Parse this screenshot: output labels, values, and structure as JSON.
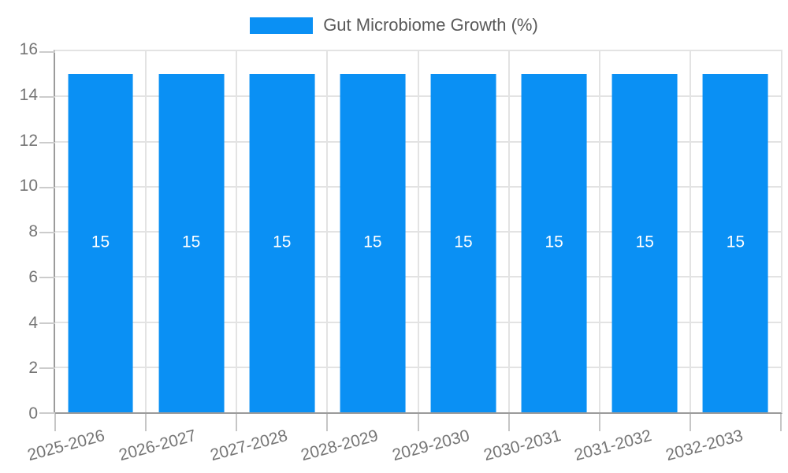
{
  "chart_data": {
    "type": "bar",
    "legend_label": "Gut Microbiome Growth (%)",
    "legend_position": "top",
    "categories": [
      "2025-2026",
      "2026-2027",
      "2027-2028",
      "2028-2029",
      "2029-2030",
      "2030-2031",
      "2031-2032",
      "2032-2033"
    ],
    "values": [
      15,
      15,
      15,
      15,
      15,
      15,
      15,
      15
    ],
    "bar_value_labels": [
      "15",
      "15",
      "15",
      "15",
      "15",
      "15",
      "15",
      "15"
    ],
    "xlabel": "",
    "ylabel": "",
    "ylim": [
      0,
      16
    ],
    "yticks": [
      0,
      2,
      4,
      6,
      8,
      10,
      12,
      14,
      16
    ],
    "grid": true,
    "series_color": "#0a90f4",
    "bar_label_color": "#ffffff"
  }
}
